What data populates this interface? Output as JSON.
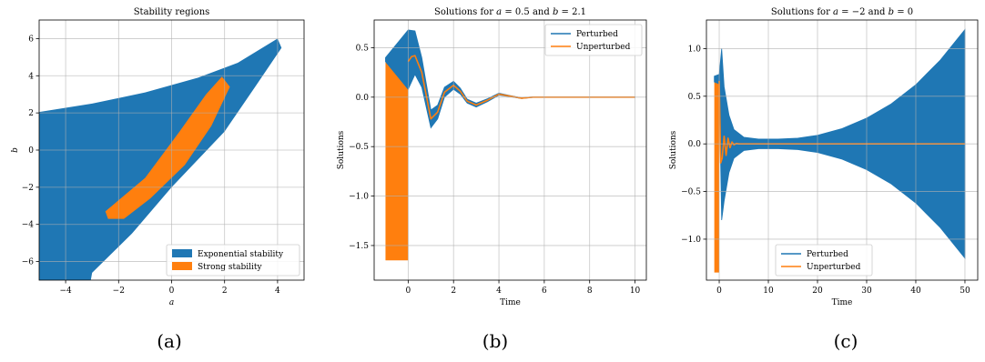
{
  "chart_data": [
    {
      "type": "area",
      "title": "Stability regions",
      "xlabel": "a",
      "ylabel": "b",
      "xlim": [
        -5,
        5
      ],
      "ylim": [
        -7,
        7
      ],
      "xticks": [
        -4,
        -2,
        0,
        2,
        4
      ],
      "yticks": [
        -6,
        -4,
        -2,
        0,
        2,
        4,
        6
      ],
      "xtick_labels": [
        "−4",
        "−2",
        "0",
        "2",
        "4"
      ],
      "ytick_labels": [
        "−6",
        "−4",
        "−2",
        "0",
        "2",
        "4",
        "6"
      ],
      "grid": true,
      "legend_position": "bottom-right",
      "caption": "(a)",
      "regions": [
        {
          "name": "Exponential stability",
          "color": "#1f77b4",
          "boundary": [
            [
              -5,
              2.05
            ],
            [
              -3,
              2.5
            ],
            [
              -1,
              3.1
            ],
            [
              1,
              3.9
            ],
            [
              2.5,
              4.7
            ],
            [
              4,
              6.0
            ],
            [
              4.15,
              5.5
            ],
            [
              3.2,
              3.5
            ],
            [
              2,
              1.0
            ],
            [
              0,
              -2.0
            ],
            [
              -1.5,
              -4.5
            ],
            [
              -3,
              -6.6
            ],
            [
              -3.05,
              -7
            ],
            [
              -5,
              -7
            ]
          ]
        },
        {
          "name": "Strong stability",
          "color": "#ff7f0e",
          "boundary": [
            [
              -2.5,
              -3.3
            ],
            [
              -1,
              -1.5
            ],
            [
              0.3,
              1.0
            ],
            [
              1.3,
              3.0
            ],
            [
              1.9,
              3.95
            ],
            [
              2.2,
              3.4
            ],
            [
              1.5,
              1.3
            ],
            [
              0.5,
              -0.8
            ],
            [
              -0.8,
              -2.6
            ],
            [
              -1.8,
              -3.7
            ],
            [
              -2.4,
              -3.7
            ]
          ]
        }
      ]
    },
    {
      "type": "line",
      "title": "Solutions for a = 0.5 and b = 2.1",
      "title_parts": [
        "Solutions for ",
        "a",
        " = 0.5 and ",
        "b",
        " = 2.1"
      ],
      "xlabel": "Time",
      "ylabel": "Solutions",
      "xlim": [
        -1.5,
        10.5
      ],
      "ylim": [
        -1.85,
        0.78
      ],
      "xticks": [
        0,
        2,
        4,
        6,
        8,
        10
      ],
      "yticks": [
        -1.5,
        -1.0,
        -0.5,
        0.0,
        0.5
      ],
      "xtick_labels": [
        "0",
        "2",
        "4",
        "6",
        "8",
        "10"
      ],
      "ytick_labels": [
        "−1.5",
        "−1.0",
        "−0.5",
        "0.0",
        "0.5"
      ],
      "grid": true,
      "legend_position": "top-right",
      "caption": "(b)",
      "history_block": {
        "x0": -1.0,
        "x1": 0.0,
        "ymin": -1.65,
        "ymax": 0.37,
        "color": "#ff7f0e"
      },
      "series": [
        {
          "name": "Perturbed",
          "color": "#1f77b4",
          "band": true,
          "x": [
            -1.0,
            0.0,
            0.3,
            0.6,
            1.0,
            1.3,
            1.6,
            2.0,
            2.3,
            2.6,
            3.0,
            3.5,
            4.0,
            4.5,
            5.0,
            5.5,
            6.0,
            7.0,
            8.0,
            10.0
          ],
          "center": [
            0.38,
            0.38,
            0.45,
            0.25,
            -0.22,
            -0.15,
            0.05,
            0.12,
            0.06,
            -0.04,
            -0.08,
            -0.03,
            0.03,
            0.01,
            -0.01,
            0.0,
            0.0,
            0.0,
            0.0,
            0.0
          ],
          "halfwidth": [
            0.02,
            0.3,
            0.22,
            0.15,
            0.09,
            0.07,
            0.05,
            0.04,
            0.03,
            0.02,
            0.02,
            0.015,
            0.01,
            0.006,
            0.004,
            0.003,
            0.002,
            0.002,
            0.002,
            0.002
          ]
        },
        {
          "name": "Unperturbed",
          "color": "#ff7f0e",
          "x": [
            0.0,
            0.15,
            0.3,
            0.6,
            1.0,
            1.3,
            1.6,
            2.0,
            2.3,
            2.6,
            3.0,
            3.5,
            4.0,
            4.5,
            5.0,
            5.5,
            6.0,
            7.0,
            8.0,
            10.0
          ],
          "y": [
            0.36,
            0.41,
            0.42,
            0.25,
            -0.22,
            -0.15,
            0.05,
            0.12,
            0.06,
            -0.04,
            -0.08,
            -0.03,
            0.03,
            0.01,
            -0.01,
            0.0,
            0.0,
            0.0,
            0.0,
            0.0
          ]
        }
      ]
    },
    {
      "type": "line",
      "title": "Solutions for a = −2 and b = 0",
      "title_parts": [
        "Solutions for ",
        "a",
        " = −2 and ",
        "b",
        " = 0"
      ],
      "xlabel": "Time",
      "ylabel": "Solutions",
      "xlim": [
        -2.6,
        52.6
      ],
      "ylim": [
        -1.43,
        1.3
      ],
      "xticks": [
        0,
        10,
        20,
        30,
        40,
        50
      ],
      "yticks": [
        -1.0,
        -0.5,
        0.0,
        0.5,
        1.0
      ],
      "xtick_labels": [
        "0",
        "10",
        "20",
        "30",
        "40",
        "50"
      ],
      "ytick_labels": [
        "−1.0",
        "−0.5",
        "0.0",
        "0.5",
        "1.0"
      ],
      "grid": true,
      "legend_position": "bottom-center",
      "caption": "(c)",
      "history_block": {
        "x0": -1.0,
        "x1": 0.0,
        "ymin": -1.35,
        "ymax": 0.66,
        "color": "#ff7f0e"
      },
      "series": [
        {
          "name": "Perturbed",
          "color": "#1f77b4",
          "band": true,
          "x": [
            -1.0,
            0.0,
            0.5,
            1.0,
            2.0,
            3.0,
            5.0,
            8.0,
            12.0,
            16.0,
            20.0,
            25.0,
            30.0,
            35.0,
            40.0,
            45.0,
            50.0
          ],
          "center": [
            0.68,
            0.68,
            0.1,
            0.0,
            0.0,
            0.0,
            0.0,
            0.0,
            0.0,
            0.0,
            0.0,
            0.0,
            0.0,
            0.0,
            0.0,
            0.0,
            0.0
          ],
          "halfwidth": [
            0.03,
            0.05,
            0.9,
            0.6,
            0.3,
            0.15,
            0.07,
            0.05,
            0.05,
            0.06,
            0.09,
            0.16,
            0.27,
            0.42,
            0.62,
            0.88,
            1.2
          ]
        },
        {
          "name": "Unperturbed",
          "color": "#ff7f0e",
          "x": [
            0.0,
            0.3,
            0.6,
            1.0,
            1.4,
            1.8,
            2.2,
            2.6,
            3.0,
            3.5,
            4.0,
            5.0,
            50.0
          ],
          "y": [
            0.66,
            -0.2,
            -0.15,
            0.08,
            -0.12,
            0.06,
            -0.04,
            0.02,
            -0.01,
            0.005,
            0.0,
            0.0,
            0.0
          ]
        }
      ]
    }
  ]
}
